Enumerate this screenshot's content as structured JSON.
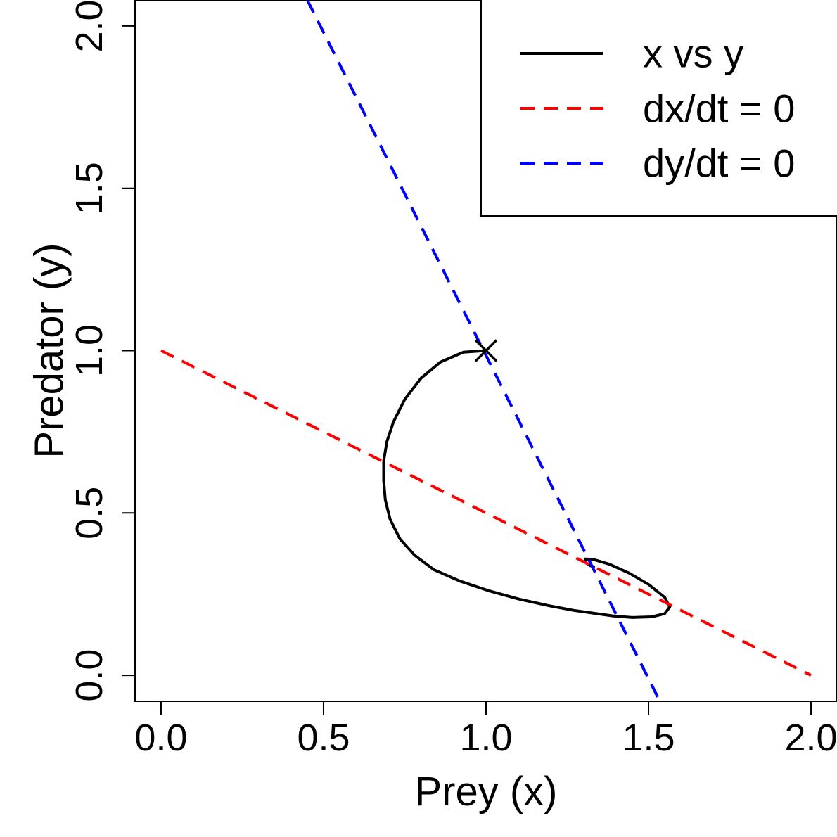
{
  "chart_data": {
    "type": "line",
    "xlabel": "Prey (x)",
    "ylabel": "Predator (y)",
    "xlim": [
      -0.08,
      2.08
    ],
    "ylim": [
      -0.08,
      2.08
    ],
    "x_ticks": [
      0.0,
      0.5,
      1.0,
      1.5,
      2.0
    ],
    "y_ticks": [
      0.0,
      0.5,
      1.0,
      1.5,
      2.0
    ],
    "x_tick_labels": [
      "0.0",
      "0.5",
      "1.0",
      "1.5",
      "2.0"
    ],
    "y_tick_labels": [
      "0.0",
      "0.5",
      "1.0",
      "1.5",
      "2.0"
    ],
    "grid": false,
    "legend_position": "top-right",
    "start_marker": {
      "x": 1.0,
      "y": 1.0,
      "symbol": "x"
    },
    "series": [
      {
        "name": "x vs y",
        "color": "#000000",
        "line_style": "solid",
        "x": [
          1.0,
          0.93,
          0.86,
          0.8,
          0.75,
          0.715,
          0.695,
          0.685,
          0.685,
          0.69,
          0.705,
          0.735,
          0.78,
          0.84,
          0.92,
          1.01,
          1.1,
          1.19,
          1.27,
          1.34,
          1.39,
          1.45,
          1.51,
          1.55,
          1.565,
          1.55,
          1.5,
          1.44,
          1.38,
          1.33,
          1.305,
          1.305,
          1.32,
          1.335
        ],
        "y": [
          1.0,
          0.995,
          0.965,
          0.915,
          0.85,
          0.78,
          0.72,
          0.66,
          0.6,
          0.54,
          0.48,
          0.42,
          0.37,
          0.325,
          0.29,
          0.26,
          0.235,
          0.215,
          0.2,
          0.19,
          0.183,
          0.178,
          0.18,
          0.19,
          0.21,
          0.24,
          0.28,
          0.315,
          0.342,
          0.357,
          0.358,
          0.348,
          0.338,
          0.333
        ]
      },
      {
        "name": "dx/dt = 0",
        "color": "#ff0000",
        "line_style": "dashed",
        "x": [
          0.0,
          2.0
        ],
        "y": [
          1.0,
          0.0
        ]
      },
      {
        "name": "dy/dt = 0",
        "color": "#0000ff",
        "line_style": "dashed",
        "x": [
          0.45,
          1.535
        ],
        "y": [
          2.08,
          -0.08
        ]
      }
    ]
  }
}
